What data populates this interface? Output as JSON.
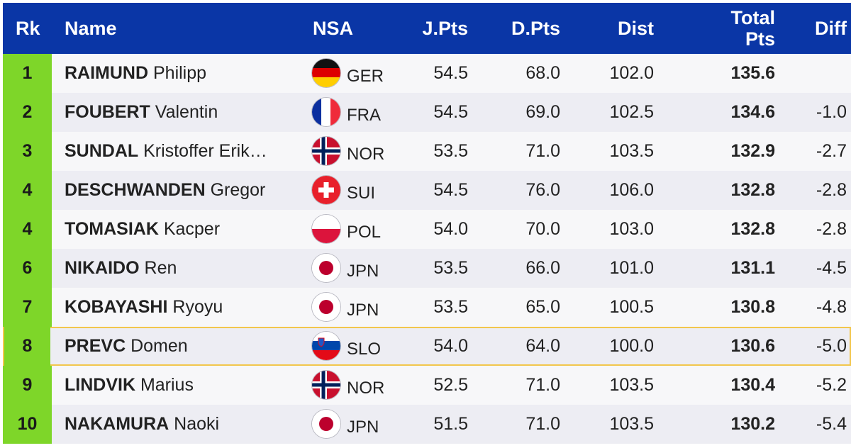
{
  "headers": {
    "rank": "Rk",
    "name": "Name",
    "nsa": "NSA",
    "jpts": "J.Pts",
    "dpts": "D.Pts",
    "dist": "Dist",
    "total_line1": "Total",
    "total_line2": "Pts",
    "diff": "Diff"
  },
  "rows": [
    {
      "rank": "1",
      "surname": "RAIMUND",
      "given": "Philipp",
      "nsa": "GER",
      "flag": "flag-germany-icon",
      "jpts": "54.5",
      "dpts": "68.0",
      "dist": "102.0",
      "total": "135.6",
      "diff": ""
    },
    {
      "rank": "2",
      "surname": "FOUBERT",
      "given": "Valentin",
      "nsa": "FRA",
      "flag": "flag-france-icon",
      "jpts": "54.5",
      "dpts": "69.0",
      "dist": "102.5",
      "total": "134.6",
      "diff": "-1.0"
    },
    {
      "rank": "3",
      "surname": "SUNDAL",
      "given": "Kristoffer Erik…",
      "nsa": "NOR",
      "flag": "flag-norway-icon",
      "jpts": "53.5",
      "dpts": "71.0",
      "dist": "103.5",
      "total": "132.9",
      "diff": "-2.7"
    },
    {
      "rank": "4",
      "surname": "DESCHWANDEN",
      "given": "Gregor",
      "nsa": "SUI",
      "flag": "flag-switzerland-icon",
      "jpts": "54.5",
      "dpts": "76.0",
      "dist": "106.0",
      "total": "132.8",
      "diff": "-2.8"
    },
    {
      "rank": "4",
      "surname": "TOMASIAK",
      "given": "Kacper",
      "nsa": "POL",
      "flag": "flag-poland-icon",
      "jpts": "54.0",
      "dpts": "70.0",
      "dist": "103.0",
      "total": "132.8",
      "diff": "-2.8"
    },
    {
      "rank": "6",
      "surname": "NIKAIDO",
      "given": "Ren",
      "nsa": "JPN",
      "flag": "flag-japan-icon",
      "jpts": "53.5",
      "dpts": "66.0",
      "dist": "101.0",
      "total": "131.1",
      "diff": "-4.5"
    },
    {
      "rank": "7",
      "surname": "KOBAYASHI",
      "given": "Ryoyu",
      "nsa": "JPN",
      "flag": "flag-japan-icon",
      "jpts": "53.5",
      "dpts": "65.0",
      "dist": "100.5",
      "total": "130.8",
      "diff": "-4.8"
    },
    {
      "rank": "8",
      "surname": "PREVC",
      "given": "Domen",
      "nsa": "SLO",
      "flag": "flag-slovenia-icon",
      "jpts": "54.0",
      "dpts": "64.0",
      "dist": "100.0",
      "total": "130.6",
      "diff": "-5.0",
      "highlighted": true
    },
    {
      "rank": "9",
      "surname": "LINDVIK",
      "given": "Marius",
      "nsa": "NOR",
      "flag": "flag-norway-icon",
      "jpts": "52.5",
      "dpts": "71.0",
      "dist": "103.5",
      "total": "130.4",
      "diff": "-5.2"
    },
    {
      "rank": "10",
      "surname": "NAKAMURA",
      "given": "Naoki",
      "nsa": "JPN",
      "flag": "flag-japan-icon",
      "jpts": "51.5",
      "dpts": "71.0",
      "dist": "103.5",
      "total": "130.2",
      "diff": "-5.4"
    }
  ],
  "colors": {
    "header_bg": "#0a36a6",
    "rank_bg": "#7ed629",
    "highlight_border": "#f2c64c",
    "row_light": "#f7f7f9",
    "row_dark": "#ededf3"
  }
}
